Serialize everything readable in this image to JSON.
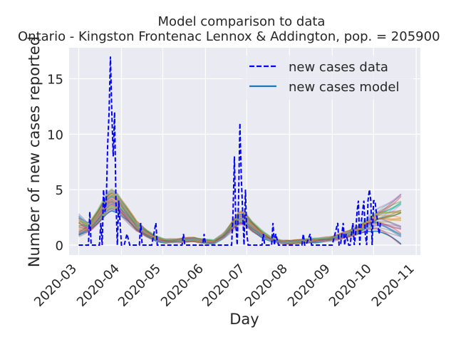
{
  "chart_data": {
    "type": "line",
    "title": "Model comparison to data",
    "subtitle": "Ontario - Kingston Frontenac Lennox & Addington, pop. = 205900",
    "xlabel": "Day",
    "ylabel": "Number of new cases reported",
    "xlim": [
      "2020-02-23",
      "2020-11-04"
    ],
    "ylim": [
      -0.9,
      17.8
    ],
    "x_ticks": [
      "2020-03",
      "2020-04",
      "2020-05",
      "2020-06",
      "2020-07",
      "2020-08",
      "2020-09",
      "2020-10",
      "2020-11"
    ],
    "y_ticks": [
      0,
      5,
      10,
      15
    ],
    "grid": true,
    "legend_position": "top-right",
    "series": [
      {
        "name": "new cases data",
        "color": "#0000ff",
        "style": "dashed",
        "x": [
          "2020-03-01",
          "2020-03-08",
          "2020-03-09",
          "2020-03-10",
          "2020-03-11",
          "2020-03-12",
          "2020-03-14",
          "2020-03-16",
          "2020-03-17",
          "2020-03-18",
          "2020-03-19",
          "2020-03-20",
          "2020-03-21",
          "2020-03-22",
          "2020-03-23",
          "2020-03-24",
          "2020-03-25",
          "2020-03-26",
          "2020-03-27",
          "2020-03-28",
          "2020-03-29",
          "2020-03-30",
          "2020-03-31",
          "2020-04-01",
          "2020-04-02",
          "2020-04-03",
          "2020-04-05",
          "2020-04-07",
          "2020-04-09",
          "2020-04-11",
          "2020-04-14",
          "2020-04-15",
          "2020-04-16",
          "2020-04-17",
          "2020-04-20",
          "2020-04-23",
          "2020-04-26",
          "2020-04-27",
          "2020-04-28",
          "2020-05-05",
          "2020-05-15",
          "2020-05-16",
          "2020-05-17",
          "2020-05-30",
          "2020-05-31",
          "2020-06-01",
          "2020-06-10",
          "2020-06-18",
          "2020-06-20",
          "2020-06-21",
          "2020-06-22",
          "2020-06-23",
          "2020-06-24",
          "2020-06-25",
          "2020-06-26",
          "2020-06-27",
          "2020-06-28",
          "2020-06-29",
          "2020-06-30",
          "2020-07-01",
          "2020-07-02",
          "2020-07-03",
          "2020-07-04",
          "2020-07-05",
          "2020-07-08",
          "2020-07-12",
          "2020-07-13",
          "2020-07-14",
          "2020-07-18",
          "2020-07-19",
          "2020-07-20",
          "2020-07-21",
          "2020-07-22",
          "2020-07-24",
          "2020-07-26",
          "2020-07-28",
          "2020-08-01",
          "2020-08-05",
          "2020-08-10",
          "2020-08-11",
          "2020-08-12",
          "2020-08-13",
          "2020-08-16",
          "2020-08-17",
          "2020-08-18",
          "2020-08-20",
          "2020-08-25",
          "2020-08-28",
          "2020-09-01",
          "2020-09-05",
          "2020-09-06",
          "2020-09-07",
          "2020-09-09",
          "2020-09-10",
          "2020-09-11",
          "2020-09-13",
          "2020-09-14",
          "2020-09-15",
          "2020-09-16",
          "2020-09-17",
          "2020-09-18",
          "2020-09-19",
          "2020-09-20",
          "2020-09-21",
          "2020-09-22",
          "2020-09-23",
          "2020-09-24",
          "2020-09-25",
          "2020-09-26",
          "2020-09-27",
          "2020-09-28",
          "2020-09-29",
          "2020-09-30",
          "2020-10-01",
          "2020-10-02",
          "2020-10-03",
          "2020-10-04",
          "2020-10-05",
          "2020-10-06"
        ],
        "y": [
          0,
          0,
          3,
          0,
          0,
          0,
          0,
          0,
          2,
          0,
          5,
          3,
          4,
          9,
          12,
          17,
          12,
          8,
          12,
          4,
          0,
          4,
          2,
          0,
          0,
          0,
          1,
          0,
          0,
          0,
          0,
          2,
          0,
          0,
          0,
          0,
          2,
          0,
          0,
          0,
          0,
          1,
          0,
          0,
          1,
          0,
          0,
          0,
          0,
          3,
          8,
          2,
          0,
          4,
          11,
          6,
          3,
          0,
          5,
          1,
          0,
          0,
          0,
          0,
          0,
          0,
          1,
          0,
          0,
          0,
          2,
          0,
          1,
          0,
          0,
          0,
          0,
          0,
          0,
          1,
          0,
          0,
          1,
          0,
          0,
          0,
          0,
          0,
          0,
          2,
          0,
          0,
          2,
          0,
          1,
          0,
          0,
          1,
          2,
          0,
          1,
          3,
          4,
          0,
          2,
          3,
          4,
          1,
          0,
          4,
          5,
          4,
          0,
          4,
          4,
          3,
          2,
          1,
          2
        ]
      }
    ],
    "model": {
      "name": "new cases model",
      "color": "#1f77b4",
      "trajectory_count": 40,
      "x_end": "2020-10-21",
      "central_curve": [
        [
          "2020-03-01",
          1.0
        ],
        [
          "2020-03-08",
          1.5
        ],
        [
          "2020-03-15",
          2.6
        ],
        [
          "2020-03-22",
          3.9
        ],
        [
          "2020-03-25",
          4.1
        ],
        [
          "2020-03-29",
          3.8
        ],
        [
          "2020-04-05",
          2.8
        ],
        [
          "2020-04-12",
          1.7
        ],
        [
          "2020-04-19",
          1.1
        ],
        [
          "2020-04-26",
          0.6
        ],
        [
          "2020-05-03",
          0.35
        ],
        [
          "2020-05-10",
          0.4
        ],
        [
          "2020-05-17",
          0.45
        ],
        [
          "2020-05-24",
          0.5
        ],
        [
          "2020-05-31",
          0.35
        ],
        [
          "2020-06-07",
          0.3
        ],
        [
          "2020-06-14",
          0.8
        ],
        [
          "2020-06-21",
          1.8
        ],
        [
          "2020-06-26",
          2.5
        ],
        [
          "2020-07-01",
          2.2
        ],
        [
          "2020-07-05",
          1.7
        ],
        [
          "2020-07-12",
          1.0
        ],
        [
          "2020-07-19",
          0.5
        ],
        [
          "2020-07-26",
          0.3
        ],
        [
          "2020-08-02",
          0.25
        ],
        [
          "2020-08-09",
          0.35
        ],
        [
          "2020-08-16",
          0.4
        ],
        [
          "2020-08-23",
          0.45
        ],
        [
          "2020-08-30",
          0.55
        ],
        [
          "2020-09-06",
          0.75
        ],
        [
          "2020-09-13",
          1.0
        ],
        [
          "2020-09-20",
          1.4
        ],
        [
          "2020-09-27",
          1.9
        ],
        [
          "2020-10-04",
          2.2
        ],
        [
          "2020-10-11",
          2.1
        ],
        [
          "2020-10-21",
          1.9
        ]
      ]
    }
  }
}
